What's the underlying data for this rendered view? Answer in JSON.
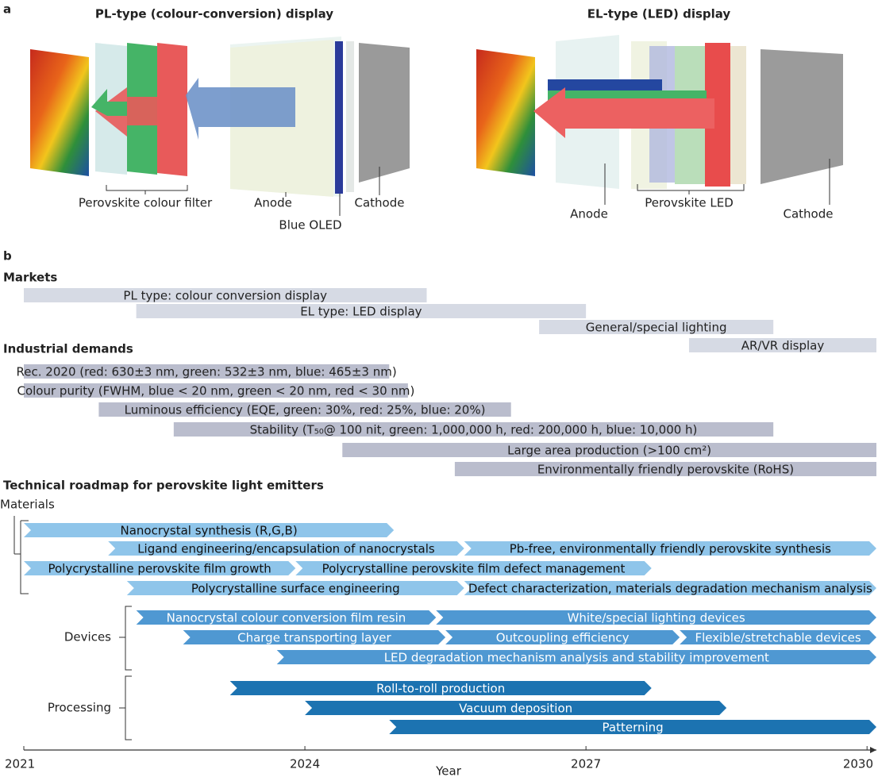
{
  "panel_a": {
    "label": "a",
    "pl": {
      "title": "PL-type (colour-conversion) display",
      "labels": [
        "Perovskite colour filter",
        "Anode",
        "Blue OLED",
        "Cathode"
      ]
    },
    "el": {
      "title": "EL-type (LED) display",
      "labels": [
        "Anode",
        "Perovskite LED",
        "Cathode"
      ]
    }
  },
  "panel_b": {
    "label": "b",
    "xlim": [
      2021,
      2030.1
    ],
    "xticks": [
      2021,
      2024,
      2027,
      2030
    ],
    "x_label": "Year",
    "markets": {
      "title": "Markets",
      "color": "#d6dae4",
      "bars": [
        {
          "label": "PL type: colour conversion display",
          "start": 2021.0,
          "end": 2025.3
        },
        {
          "label": "EL type: LED display",
          "start": 2022.2,
          "end": 2027.0
        },
        {
          "label": "General/special lighting",
          "start": 2026.5,
          "end": 2029.0
        },
        {
          "label": "AR/VR display",
          "start": 2028.1,
          "end": 2030.1
        }
      ]
    },
    "demands": {
      "title": "Industrial demands",
      "color": "#babdcd",
      "bars": [
        {
          "label": "Rec. 2020 (red: 630±3 nm, green: 532±3 nm, blue: 465±3 nm)",
          "start": 2021.0,
          "end": 2024.9
        },
        {
          "label": "Colour purity (FWHM, blue < 20 nm, green < 20 nm, red < 30 nm)",
          "start": 2021.0,
          "end": 2025.1
        },
        {
          "label": "Luminous efficiency (EQE, green: 30%, red: 25%, blue: 20%)",
          "start": 2021.8,
          "end": 2026.2
        },
        {
          "label": "Stability (T₅₀@ 100 nit, green: 1,000,000 h, red: 200,000 h, blue: 10,000 h)",
          "start": 2022.6,
          "end": 2029.0
        },
        {
          "label": "Large area production (>100 cm²)",
          "start": 2024.4,
          "end": 2030.1
        },
        {
          "label": "Environmentally friendly perovskite (RoHS)",
          "start": 2025.6,
          "end": 2030.1
        }
      ]
    },
    "roadmap": {
      "title": "Technical roadmap for perovskite light emitters",
      "groups": [
        {
          "name": "Materials",
          "color": "#8fc5ea",
          "bars": [
            {
              "label": "Nanocrystal synthesis (R,G,B)",
              "start": 2021.0,
              "end": 2024.95
            },
            {
              "label": "Ligand engineering/encapsulation of nanocrystals",
              "start": 2021.9,
              "end": 2025.7
            },
            {
              "label": "Pb-free, environmentally friendly perovskite synthesis",
              "start": 2025.7,
              "end": 2030.1
            },
            {
              "label": "Polycrystalline perovskite film growth",
              "start": 2021.0,
              "end": 2023.9
            },
            {
              "label": "Polycrystalline perovskite film defect management",
              "start": 2023.9,
              "end": 2027.7
            },
            {
              "label": "Polycrystalline surface engineering",
              "start": 2022.1,
              "end": 2025.7
            },
            {
              "label": "Defect characterization, materials degradation mechanism analysis",
              "start": 2025.7,
              "end": 2030.1
            }
          ]
        },
        {
          "name": "Devices",
          "color": "#4f98d2",
          "bars": [
            {
              "label": "Nanocrystal colour conversion film resin",
              "start": 2022.2,
              "end": 2025.4
            },
            {
              "label": "White/special lighting devices",
              "start": 2025.4,
              "end": 2030.1
            },
            {
              "label": "Charge transporting layer",
              "start": 2022.7,
              "end": 2025.5
            },
            {
              "label": "Outcoupling efficiency",
              "start": 2025.5,
              "end": 2028.0
            },
            {
              "label": "Flexible/stretchable devices",
              "start": 2028.0,
              "end": 2030.1
            },
            {
              "label": "LED degradation mechanism analysis and stability improvement",
              "start": 2023.7,
              "end": 2030.1
            }
          ]
        },
        {
          "name": "Processing",
          "color": "#1c73b1",
          "bars": [
            {
              "label": "Roll-to-roll production",
              "start": 2023.2,
              "end": 2027.7
            },
            {
              "label": "Vacuum deposition",
              "start": 2024.0,
              "end": 2028.5
            },
            {
              "label": "Patterning",
              "start": 2024.9,
              "end": 2030.1
            }
          ]
        }
      ]
    }
  }
}
